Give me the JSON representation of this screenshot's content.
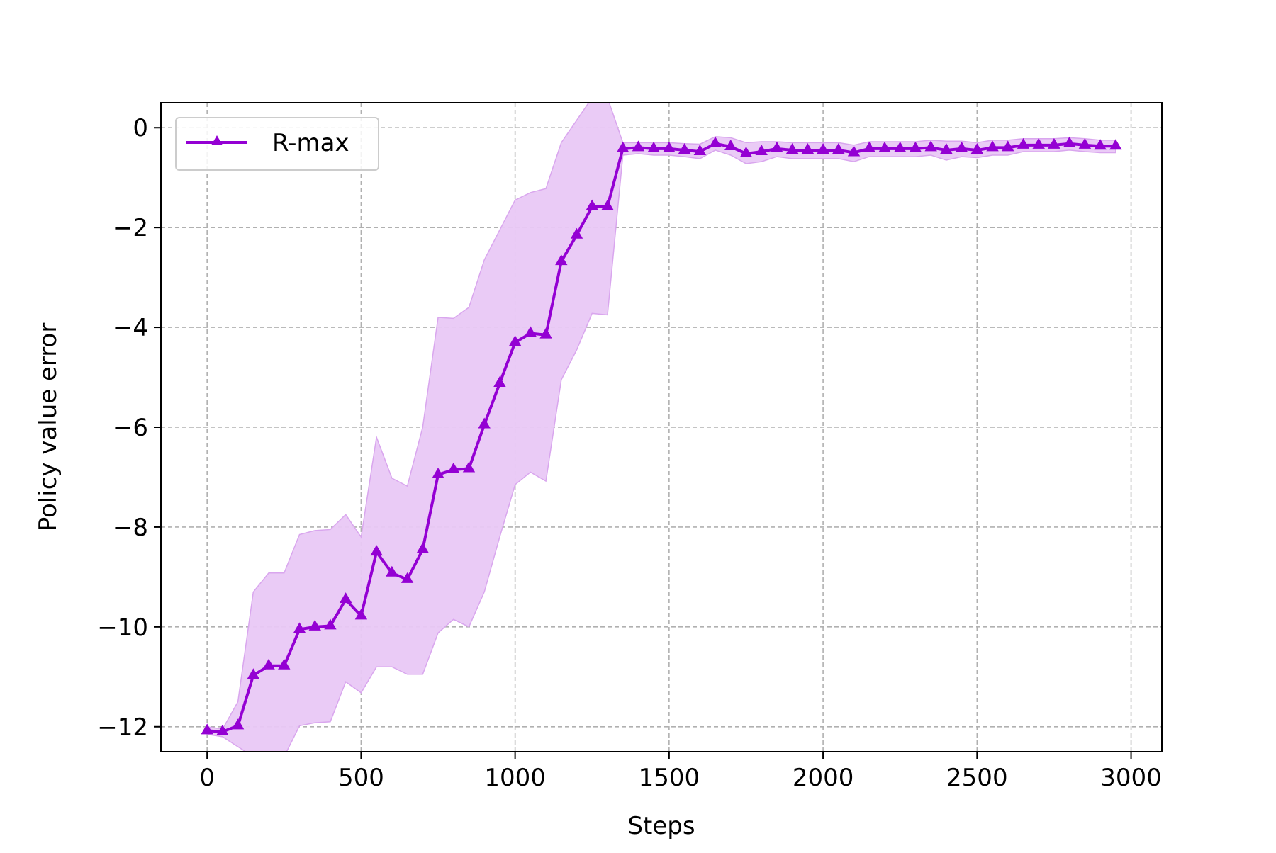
{
  "chart_data": {
    "type": "line",
    "title": "",
    "xlabel": "Steps",
    "ylabel": "Policy value error",
    "xlim": [
      -150,
      3100
    ],
    "ylim": [
      -12.5,
      0.5
    ],
    "xticks": [
      0,
      500,
      1000,
      1500,
      2000,
      2500,
      3000
    ],
    "xtick_labels": [
      "0",
      "500",
      "1000",
      "1500",
      "2000",
      "2500",
      "3000"
    ],
    "yticks": [
      0,
      -2,
      -4,
      -6,
      -8,
      -10,
      -12
    ],
    "ytick_labels": [
      "0",
      "−2",
      "−4",
      "−6",
      "−8",
      "−10",
      "−12"
    ],
    "grid": true,
    "legend_position": "upper-left",
    "x": [
      0,
      50,
      100,
      150,
      200,
      250,
      300,
      350,
      400,
      450,
      500,
      550,
      600,
      650,
      700,
      750,
      800,
      850,
      900,
      950,
      1000,
      1050,
      1100,
      1150,
      1200,
      1250,
      1300,
      1350,
      1400,
      1450,
      1500,
      1550,
      1600,
      1650,
      1700,
      1750,
      1800,
      1850,
      1900,
      1950,
      2000,
      2050,
      2100,
      2150,
      2200,
      2250,
      2300,
      2350,
      2400,
      2450,
      2500,
      2550,
      2600,
      2650,
      2700,
      2750,
      2800,
      2850,
      2900,
      2950
    ],
    "series": [
      {
        "name": "R-max",
        "color": "#9400d3",
        "band_color": "#e9c8f5",
        "marker": "triangle-up",
        "values": [
          -12.08,
          -12.1,
          -11.98,
          -10.97,
          -10.78,
          -10.78,
          -10.05,
          -10.0,
          -9.98,
          -9.45,
          -9.78,
          -8.5,
          -8.92,
          -9.05,
          -8.45,
          -6.95,
          -6.85,
          -6.83,
          -5.95,
          -5.12,
          -4.3,
          -4.12,
          -4.15,
          -2.68,
          -2.15,
          -1.58,
          -1.58,
          -0.42,
          -0.4,
          -0.42,
          -0.42,
          -0.45,
          -0.48,
          -0.32,
          -0.38,
          -0.52,
          -0.48,
          -0.42,
          -0.45,
          -0.45,
          -0.45,
          -0.45,
          -0.5,
          -0.42,
          -0.42,
          -0.42,
          -0.42,
          -0.4,
          -0.45,
          -0.42,
          -0.45,
          -0.4,
          -0.4,
          -0.35,
          -0.35,
          -0.35,
          -0.32,
          -0.35,
          -0.37,
          -0.37
        ],
        "upper": [
          -12.0,
          -12.05,
          -11.5,
          -9.3,
          -8.92,
          -8.92,
          -8.15,
          -8.07,
          -8.05,
          -7.75,
          -8.2,
          -6.2,
          -7.02,
          -7.18,
          -6.0,
          -3.8,
          -3.82,
          -3.6,
          -2.65,
          -2.05,
          -1.45,
          -1.3,
          -1.22,
          -0.3,
          0.15,
          0.6,
          0.6,
          -0.3,
          -0.3,
          -0.3,
          -0.3,
          -0.32,
          -0.33,
          -0.18,
          -0.2,
          -0.3,
          -0.28,
          -0.28,
          -0.3,
          -0.3,
          -0.3,
          -0.3,
          -0.35,
          -0.28,
          -0.28,
          -0.28,
          -0.28,
          -0.25,
          -0.27,
          -0.27,
          -0.3,
          -0.25,
          -0.25,
          -0.22,
          -0.22,
          -0.22,
          -0.2,
          -0.22,
          -0.25,
          -0.25
        ],
        "lower": [
          -12.15,
          -12.2,
          -12.4,
          -12.6,
          -12.7,
          -12.6,
          -11.98,
          -11.92,
          -11.9,
          -11.1,
          -11.32,
          -10.8,
          -10.8,
          -10.95,
          -10.95,
          -10.12,
          -9.85,
          -10.0,
          -9.3,
          -8.2,
          -7.15,
          -6.9,
          -7.08,
          -5.05,
          -4.45,
          -3.72,
          -3.75,
          -0.55,
          -0.52,
          -0.55,
          -0.55,
          -0.58,
          -0.62,
          -0.45,
          -0.55,
          -0.72,
          -0.68,
          -0.58,
          -0.62,
          -0.62,
          -0.62,
          -0.62,
          -0.68,
          -0.58,
          -0.58,
          -0.58,
          -0.58,
          -0.55,
          -0.65,
          -0.58,
          -0.6,
          -0.55,
          -0.55,
          -0.48,
          -0.48,
          -0.48,
          -0.45,
          -0.48,
          -0.5,
          -0.5
        ]
      }
    ]
  }
}
